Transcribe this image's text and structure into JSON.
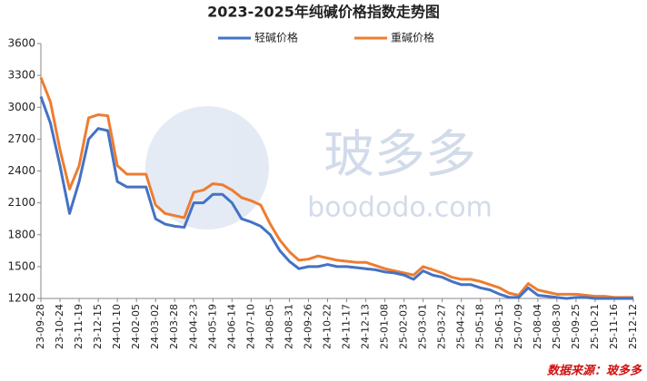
{
  "chart_data": {
    "type": "line",
    "title": "2023-2025年纯碱价格指数走势图",
    "watermark": [
      "玻多多",
      "boododo.com"
    ],
    "source": "数据来源：玻多多",
    "categories": [
      "23-09-28",
      null,
      "23-10-24",
      null,
      "23-11-19",
      null,
      "23-12-15",
      null,
      "24-01-10",
      null,
      "24-02-05",
      null,
      "24-03-02",
      null,
      "24-03-28",
      null,
      "24-04-23",
      null,
      "24-05-19",
      null,
      "24-06-14",
      null,
      "24-07-10",
      null,
      "24-08-05",
      null,
      "24-08-31",
      null,
      "24-09-26",
      null,
      "24-10-22",
      null,
      "24-11-17",
      null,
      "24-12-13",
      null,
      "25-01-08",
      null,
      "25-02-03",
      null,
      "25-03-01",
      null,
      "25-03-27",
      null,
      "25-04-22",
      null,
      "25-05-18",
      null,
      "25-06-13",
      null,
      "25-07-09",
      null,
      "25-08-04",
      null,
      "25-08-30",
      null,
      "25-09-25",
      null,
      "25-10-21",
      null,
      "25-11-16",
      null,
      "25-12-12"
    ],
    "series": [
      {
        "name": "轻碱价格",
        "color": "#4472c4",
        "values": [
          3100,
          2850,
          2450,
          2000,
          2300,
          2700,
          2800,
          2780,
          2300,
          2250,
          2250,
          2250,
          1950,
          1900,
          1880,
          1870,
          2100,
          2100,
          2180,
          2180,
          2100,
          1950,
          1920,
          1880,
          1800,
          1650,
          1550,
          1480,
          1500,
          1500,
          1520,
          1500,
          1500,
          1490,
          1480,
          1470,
          1450,
          1440,
          1420,
          1380,
          1460,
          1420,
          1400,
          1360,
          1330,
          1330,
          1300,
          1280,
          1240,
          1210,
          1210,
          1300,
          1230,
          1220,
          1210,
          1200,
          1210,
          1210,
          1200,
          1200,
          1200,
          1200,
          1200
        ]
      },
      {
        "name": "重碱价格",
        "color": "#ed7d31",
        "values": [
          3280,
          3050,
          2600,
          2230,
          2450,
          2900,
          2930,
          2920,
          2450,
          2370,
          2370,
          2370,
          2080,
          2000,
          1980,
          1960,
          2200,
          2220,
          2280,
          2270,
          2220,
          2150,
          2120,
          2080,
          1900,
          1750,
          1640,
          1560,
          1570,
          1600,
          1580,
          1560,
          1550,
          1540,
          1540,
          1510,
          1480,
          1460,
          1440,
          1420,
          1500,
          1470,
          1440,
          1400,
          1380,
          1380,
          1360,
          1330,
          1300,
          1250,
          1230,
          1340,
          1280,
          1260,
          1240,
          1240,
          1240,
          1230,
          1220,
          1220,
          1210,
          1210,
          1210
        ]
      }
    ],
    "ylim": [
      1200,
      3600
    ],
    "yticks": [
      1200,
      1500,
      1800,
      2100,
      2400,
      2700,
      3000,
      3300,
      3600
    ],
    "grid": false
  }
}
